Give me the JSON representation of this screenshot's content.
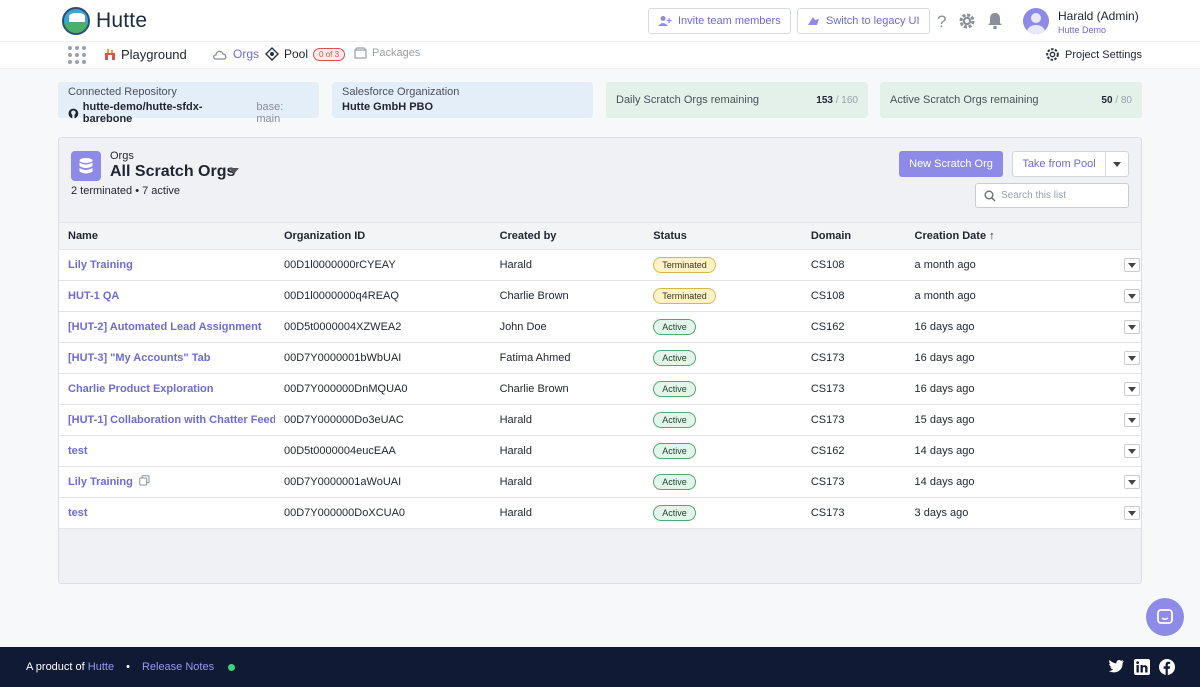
{
  "header": {
    "brand": "Hutte",
    "invite_label": "Invite team members",
    "legacy_label": "Switch to legacy UI",
    "user_name": "Harald (Admin)",
    "user_org": "Hutte Demo"
  },
  "nav": {
    "playground": "Playground",
    "orgs": "Orgs",
    "pool": "Pool",
    "pool_badge": "0 of 3",
    "packages": "Packages",
    "project_settings": "Project Settings"
  },
  "cards": {
    "repo_label": "Connected Repository",
    "repo_value": "hutte-demo/hutte-sfdx-barebone",
    "repo_base": "base: main",
    "sf_label": "Salesforce Organization",
    "sf_value": "Hutte GmbH PBO",
    "daily_label": "Daily Scratch Orgs remaining",
    "daily_value": "153",
    "daily_total": "/ 160",
    "active_label": "Active Scratch Orgs remaining",
    "active_value": "50",
    "active_total": "/ 80"
  },
  "panel": {
    "section_label": "Orgs",
    "title": "All Scratch Orgs",
    "summary": "2 terminated • 7 active",
    "new_button": "New Scratch Org",
    "pool_button": "Take from Pool",
    "search_placeholder": "Search this list"
  },
  "table": {
    "columns": [
      "Name",
      "Organization ID",
      "Created by",
      "Status",
      "Domain",
      "Creation Date ↑"
    ],
    "rows": [
      {
        "name": "Lily Training",
        "org_id": "00D1l0000000rCYEAY",
        "created_by": "Harald",
        "status": "Terminated",
        "domain": "CS108",
        "date": "a month ago"
      },
      {
        "name": "HUT-1 QA",
        "org_id": "00D1l0000000q4REAQ",
        "created_by": "Charlie Brown",
        "status": "Terminated",
        "domain": "CS108",
        "date": "a month ago"
      },
      {
        "name": "[HUT-2] Automated Lead Assignment",
        "org_id": "00D5t0000004XZWEA2",
        "created_by": "John Doe",
        "status": "Active",
        "domain": "CS162",
        "date": "16 days ago"
      },
      {
        "name": "[HUT-3] \"My Accounts\" Tab",
        "org_id": "00D7Y0000001bWbUAI",
        "created_by": "Fatima Ahmed",
        "status": "Active",
        "domain": "CS173",
        "date": "16 days ago"
      },
      {
        "name": "Charlie Product Exploration",
        "org_id": "00D7Y000000DnMQUA0",
        "created_by": "Charlie Brown",
        "status": "Active",
        "domain": "CS173",
        "date": "16 days ago"
      },
      {
        "name": "[HUT-1] Collaboration with Chatter Feed",
        "org_id": "00D7Y000000Do3eUAC",
        "created_by": "Harald",
        "status": "Active",
        "domain": "CS173",
        "date": "15 days ago"
      },
      {
        "name": "test",
        "org_id": "00D5t0000004eucEAA",
        "created_by": "Harald",
        "status": "Active",
        "domain": "CS162",
        "date": "14 days ago"
      },
      {
        "name": "Lily Training",
        "org_id": "00D7Y0000001aWoUAI",
        "created_by": "Harald",
        "status": "Active",
        "domain": "CS173",
        "date": "14 days ago",
        "copy_icon": true
      },
      {
        "name": "test",
        "org_id": "00D7Y000000DoXCUA0",
        "created_by": "Harald",
        "status": "Active",
        "domain": "CS173",
        "date": "3 days ago"
      }
    ]
  },
  "footer": {
    "product_of": "A product of",
    "product_link": "Hutte",
    "separator": "•",
    "release_notes": "Release Notes"
  },
  "colors": {
    "accent": "#8e8be8",
    "link": "#6e6ad8",
    "footer_bg": "#101a35",
    "status_ok": "#3bd67c"
  },
  "icons": [
    "hutte-logo-icon",
    "invite-icon",
    "legacy-icon",
    "help-icon",
    "gear-icon",
    "bell-icon",
    "apps-grid-icon",
    "playground-icon",
    "cloud-icon",
    "pool-icon",
    "package-icon",
    "settings-icon",
    "github-icon",
    "database-icon",
    "search-icon",
    "copy-icon",
    "twitter-icon",
    "linkedin-icon",
    "facebook-icon",
    "chat-icon"
  ]
}
